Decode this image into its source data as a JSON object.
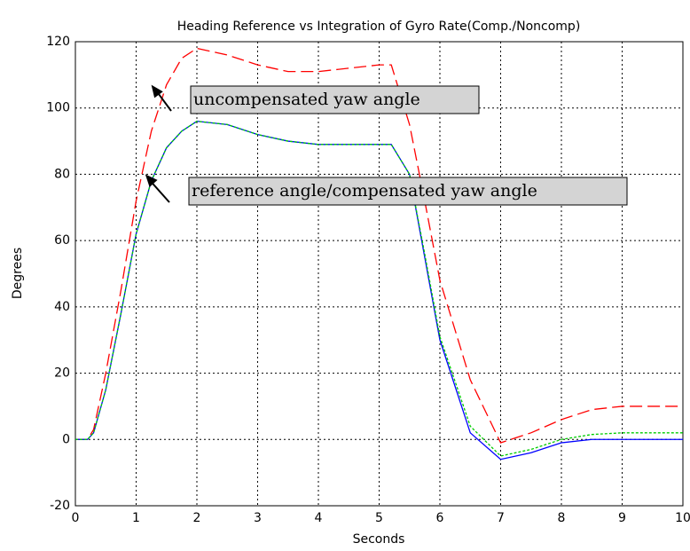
{
  "chart_data": {
    "type": "line",
    "title": "Heading Reference vs Integration of Gyro Rate(Comp./Noncomp)",
    "x_label": "Seconds",
    "y_label": "Degrees",
    "x": [
      0,
      0.2,
      0.3,
      0.5,
      0.75,
      1,
      1.25,
      1.5,
      1.75,
      2,
      2.5,
      3,
      3.5,
      4,
      4.5,
      5,
      5.2,
      5.5,
      5.75,
      6,
      6.5,
      7,
      7.5,
      8,
      8.5,
      9,
      9.5,
      10
    ],
    "series": [
      {
        "color": "#ff0000",
        "dash": "dashed",
        "values": [
          0,
          0,
          3,
          20,
          45,
          72,
          93,
          107,
          115,
          118,
          116,
          113,
          111,
          111,
          112,
          113,
          113,
          95,
          72,
          48,
          18,
          -1,
          2,
          6,
          9,
          10,
          10,
          10
        ]
      },
      {
        "color": "#0000ff",
        "dash": "solid",
        "values": [
          0,
          0,
          2,
          15,
          38,
          62,
          78,
          88,
          93,
          96,
          95,
          92,
          90,
          89,
          89,
          89,
          89,
          80,
          55,
          30,
          2,
          -6,
          -4,
          -1,
          0,
          0,
          0,
          0
        ]
      },
      {
        "color": "#00cc00",
        "dash": "dotted",
        "values": [
          0,
          0,
          2,
          15,
          38,
          62,
          78,
          88,
          93,
          96,
          95,
          92,
          90,
          89,
          89,
          89,
          89,
          80,
          56,
          31,
          4,
          -5,
          -3,
          0,
          1.5,
          2,
          2,
          2
        ]
      }
    ],
    "annotations": [
      {
        "text": "uncompensated yaw angle",
        "x": 1.25,
        "y": 107
      },
      {
        "text": "reference angle/compensated yaw angle",
        "x": 1.15,
        "y": 80
      }
    ],
    "xlim": [
      0,
      10
    ],
    "xticks": [
      0,
      1,
      2,
      3,
      4,
      5,
      6,
      7,
      8,
      9,
      10
    ],
    "ylim": [
      -20,
      120
    ],
    "yticks": [
      -20,
      0,
      20,
      40,
      60,
      80,
      100,
      120
    ],
    "grid": true
  }
}
